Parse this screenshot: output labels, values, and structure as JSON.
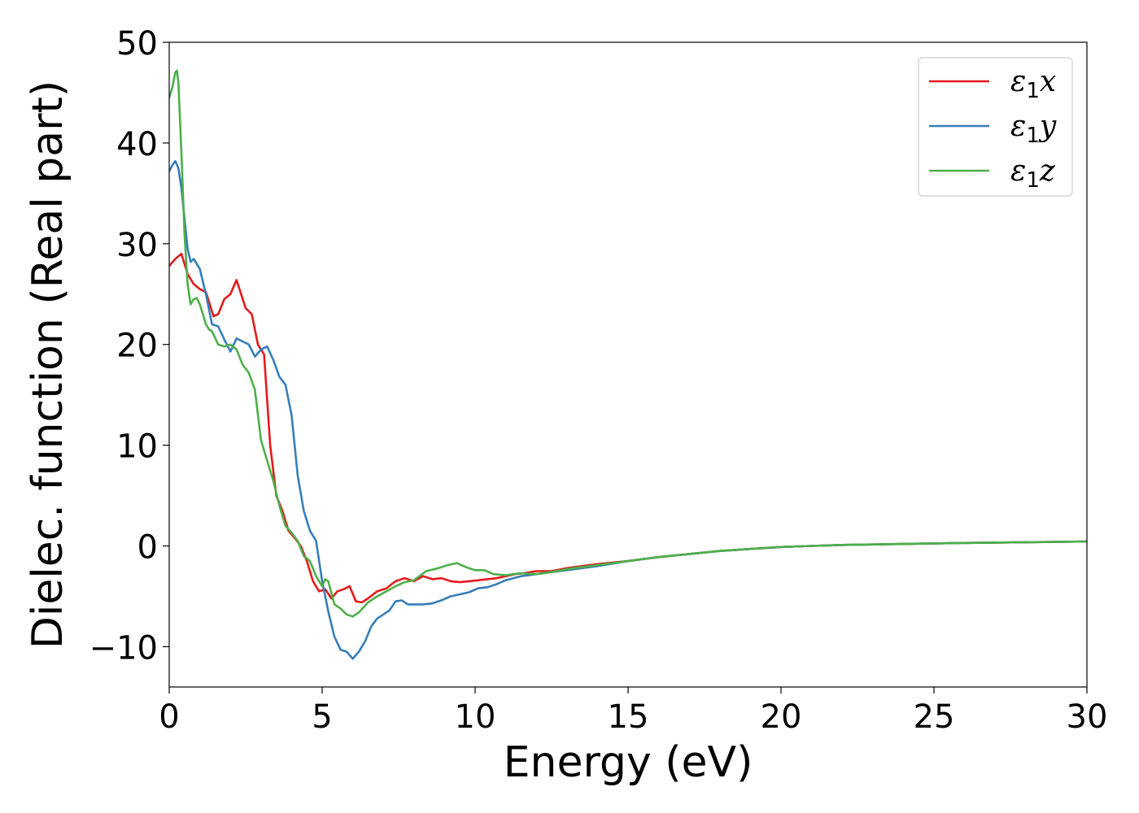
{
  "chart_data": {
    "type": "line",
    "title": "",
    "xlabel": "Energy (eV)",
    "ylabel": "Dielec. function (Real part)",
    "xlim": [
      0,
      30
    ],
    "ylim": [
      -14,
      50
    ],
    "xticks": [
      0,
      5,
      10,
      15,
      20,
      25,
      30
    ],
    "xtick_labels": [
      "0",
      "5",
      "10",
      "15",
      "20",
      "25",
      "30"
    ],
    "yticks": [
      -10,
      0,
      10,
      20,
      30,
      40,
      50
    ],
    "ytick_labels": [
      "−10",
      "0",
      "10",
      "20",
      "30",
      "40",
      "50"
    ],
    "grid": false,
    "legend_position": "top-right",
    "series": [
      {
        "name": "ε₁x",
        "legend": {
          "symbol": "ε",
          "sub": "1",
          "var": "x"
        },
        "color": "#e41a1c",
        "x": [
          0,
          0.2,
          0.4,
          0.6,
          0.8,
          1.0,
          1.2,
          1.45,
          1.6,
          1.8,
          2.0,
          2.2,
          2.35,
          2.5,
          2.7,
          2.9,
          3.1,
          3.3,
          3.5,
          3.7,
          3.9,
          4.1,
          4.3,
          4.5,
          4.7,
          4.9,
          5.1,
          5.3,
          5.5,
          5.7,
          5.9,
          6.1,
          6.3,
          6.5,
          6.8,
          7.1,
          7.4,
          7.7,
          8.0,
          8.3,
          8.6,
          8.9,
          9.2,
          9.5,
          9.8,
          10.1,
          10.4,
          10.7,
          11.0,
          11.3,
          11.6,
          12.0,
          12.5,
          13.0,
          13.5,
          14.0,
          15.0,
          16.0,
          17.0,
          18.0,
          19.0,
          20.0,
          21.0,
          22.0,
          23.0,
          24.0,
          25.0,
          26.0,
          27.0,
          28.0,
          29.0,
          30.0
        ],
        "y": [
          27.8,
          28.5,
          29.0,
          27.0,
          26.0,
          25.5,
          25.2,
          22.8,
          23.0,
          24.5,
          25.0,
          26.4,
          25.0,
          23.6,
          23.0,
          20.0,
          19.0,
          10.0,
          5.0,
          3.5,
          1.5,
          0.8,
          0.0,
          -1.5,
          -3.5,
          -4.5,
          -4.3,
          -5.2,
          -4.5,
          -4.3,
          -4.0,
          -5.5,
          -5.6,
          -5.2,
          -4.5,
          -4.2,
          -3.5,
          -3.2,
          -3.5,
          -3.0,
          -3.3,
          -3.2,
          -3.5,
          -3.6,
          -3.5,
          -3.4,
          -3.3,
          -3.2,
          -3.0,
          -2.8,
          -2.7,
          -2.5,
          -2.5,
          -2.2,
          -2.0,
          -1.8,
          -1.5,
          -1.1,
          -0.8,
          -0.5,
          -0.3,
          -0.1,
          0.0,
          0.1,
          0.15,
          0.2,
          0.25,
          0.3,
          0.33,
          0.37,
          0.4,
          0.45
        ]
      },
      {
        "name": "ε₁y",
        "legend": {
          "symbol": "ε",
          "sub": "1",
          "var": "y"
        },
        "color": "#377eb8",
        "x": [
          0,
          0.1,
          0.2,
          0.3,
          0.4,
          0.5,
          0.6,
          0.7,
          0.8,
          1.0,
          1.2,
          1.4,
          1.6,
          1.8,
          2.0,
          2.2,
          2.4,
          2.6,
          2.8,
          3.0,
          3.2,
          3.4,
          3.6,
          3.8,
          4.0,
          4.2,
          4.4,
          4.6,
          4.8,
          5.0,
          5.2,
          5.4,
          5.6,
          5.8,
          6.0,
          6.2,
          6.4,
          6.6,
          6.8,
          7.0,
          7.2,
          7.4,
          7.6,
          7.8,
          8.0,
          8.3,
          8.6,
          8.9,
          9.2,
          9.5,
          9.8,
          10.1,
          10.4,
          10.7,
          11.0,
          11.5,
          12.0,
          12.5,
          13.0,
          13.5,
          14.0,
          15.0,
          16.0,
          17.0,
          18.0,
          19.0,
          20.0,
          21.0,
          22.0,
          23.0,
          24.0,
          25.0,
          26.0,
          27.0,
          28.0,
          29.0,
          30.0
        ],
        "y": [
          37.2,
          37.8,
          38.2,
          37.5,
          35.5,
          32.5,
          29.5,
          28.2,
          28.5,
          27.5,
          25.0,
          22.0,
          21.8,
          20.5,
          19.3,
          20.6,
          20.3,
          20.0,
          18.8,
          19.5,
          19.8,
          18.5,
          16.8,
          16.0,
          13.0,
          7.0,
          3.5,
          1.5,
          0.5,
          -3.5,
          -6.5,
          -9.0,
          -10.3,
          -10.5,
          -11.2,
          -10.5,
          -9.5,
          -8.0,
          -7.2,
          -6.8,
          -6.4,
          -5.5,
          -5.4,
          -5.8,
          -5.8,
          -5.8,
          -5.7,
          -5.4,
          -5.0,
          -4.8,
          -4.6,
          -4.2,
          -4.1,
          -3.8,
          -3.4,
          -3.0,
          -2.8,
          -2.6,
          -2.4,
          -2.2,
          -2.0,
          -1.5,
          -1.1,
          -0.8,
          -0.5,
          -0.3,
          -0.1,
          0.0,
          0.1,
          0.15,
          0.2,
          0.25,
          0.3,
          0.33,
          0.37,
          0.4,
          0.45
        ]
      },
      {
        "name": "ε₁z",
        "legend": {
          "symbol": "ε",
          "sub": "1",
          "var": "z"
        },
        "color": "#4daf4a",
        "x": [
          0,
          0.1,
          0.2,
          0.25,
          0.3,
          0.4,
          0.5,
          0.6,
          0.7,
          0.8,
          0.9,
          1.0,
          1.1,
          1.2,
          1.3,
          1.4,
          1.6,
          1.8,
          2.0,
          2.2,
          2.4,
          2.6,
          2.8,
          3.0,
          3.2,
          3.4,
          3.6,
          3.8,
          4.0,
          4.2,
          4.4,
          4.6,
          4.8,
          5.0,
          5.1,
          5.2,
          5.4,
          5.6,
          5.8,
          6.0,
          6.2,
          6.5,
          6.8,
          7.1,
          7.4,
          7.7,
          8.0,
          8.4,
          8.8,
          9.1,
          9.4,
          9.7,
          10.0,
          10.3,
          10.6,
          11.0,
          11.5,
          12.0,
          12.5,
          13.0,
          13.5,
          14.0,
          15.0,
          16.0,
          17.0,
          18.0,
          19.0,
          20.0,
          21.0,
          22.0,
          23.0,
          24.0,
          25.0,
          26.0,
          27.0,
          28.0,
          29.0,
          30.0
        ],
        "y": [
          44.5,
          45.5,
          47.0,
          47.2,
          46.0,
          39.0,
          31.0,
          26.0,
          24.0,
          24.5,
          24.6,
          24.0,
          23.0,
          22.0,
          21.5,
          21.3,
          20.0,
          19.8,
          20.0,
          19.5,
          18.0,
          17.2,
          15.5,
          10.5,
          8.5,
          6.5,
          4.0,
          2.0,
          1.3,
          0.5,
          -1.0,
          -1.5,
          -3.0,
          -4.0,
          -3.3,
          -3.5,
          -5.8,
          -6.2,
          -6.8,
          -7.0,
          -6.6,
          -5.6,
          -5.0,
          -4.5,
          -4.0,
          -3.6,
          -3.4,
          -2.5,
          -2.2,
          -1.9,
          -1.7,
          -2.1,
          -2.4,
          -2.4,
          -2.8,
          -2.9,
          -2.7,
          -2.8,
          -2.6,
          -2.3,
          -2.1,
          -1.9,
          -1.5,
          -1.1,
          -0.8,
          -0.5,
          -0.3,
          -0.1,
          0.0,
          0.1,
          0.15,
          0.2,
          0.25,
          0.3,
          0.33,
          0.37,
          0.4,
          0.45
        ]
      }
    ]
  }
}
